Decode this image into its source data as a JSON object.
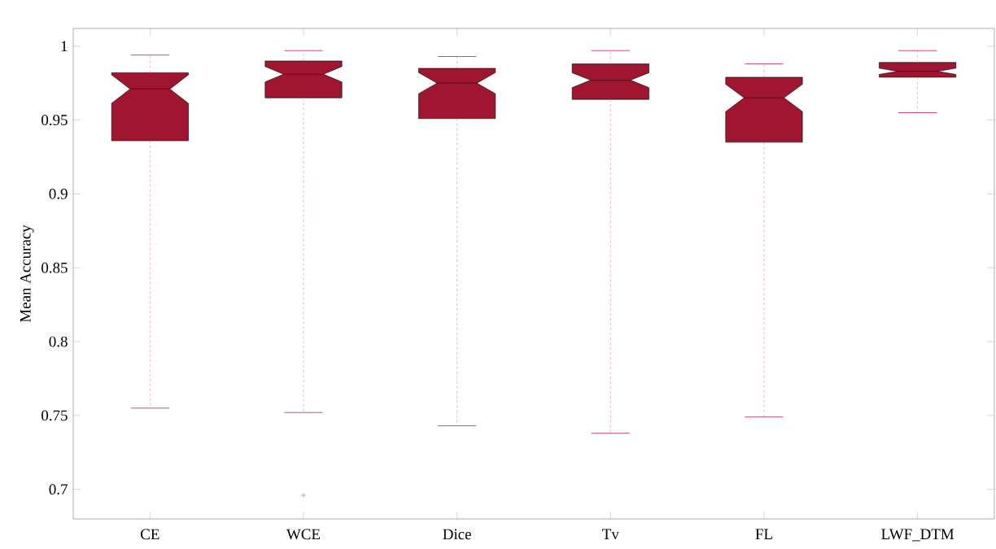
{
  "chart_data": {
    "type": "box",
    "ylabel": "Mean Accuracy",
    "categories": [
      "CE",
      "WCE",
      "Dice",
      "Tv",
      "FL",
      "LWF_DTM"
    ],
    "color": "#a0152f",
    "boxes": [
      {
        "low": 0.755,
        "q1": 0.936,
        "median": 0.971,
        "q3": 0.982,
        "high": 0.994
      },
      {
        "low": 0.752,
        "q1": 0.965,
        "median": 0.981,
        "q3": 0.99,
        "high": 0.997,
        "outliers": [
          0.696
        ]
      },
      {
        "low": 0.743,
        "q1": 0.951,
        "median": 0.975,
        "q3": 0.985,
        "high": 0.993
      },
      {
        "low": 0.738,
        "q1": 0.964,
        "median": 0.977,
        "q3": 0.988,
        "high": 0.997
      },
      {
        "low": 0.749,
        "q1": 0.935,
        "median": 0.965,
        "q3": 0.979,
        "high": 0.988
      },
      {
        "low": 0.955,
        "q1": 0.979,
        "median": 0.983,
        "q3": 0.989,
        "high": 0.997
      }
    ],
    "ylim": [
      0.68,
      1.012
    ],
    "yticks": [
      0.7,
      0.75,
      0.8,
      0.85,
      0.9,
      0.95,
      1
    ]
  }
}
